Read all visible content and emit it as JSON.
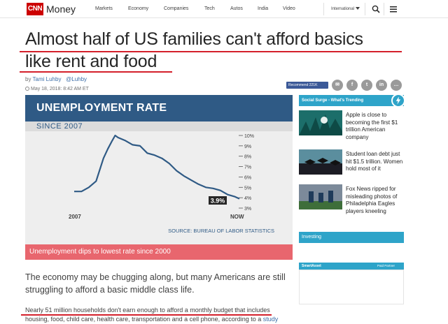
{
  "nav": {
    "logo": "CNN",
    "brand": "Money",
    "links": [
      "Markets",
      "Economy",
      "Companies",
      "Tech",
      "Autos",
      "India",
      "Video"
    ],
    "region": "International"
  },
  "article": {
    "headline_line1": "Almost half of US families can't afford basics",
    "headline_line2": "like rent and food",
    "by": "by",
    "author": "Tami Luhby",
    "handle": "@Luhby",
    "date": "May 18, 2018: 8:42 AM ET",
    "caption": "Unemployment dips to lowest rate since 2000",
    "para1": "The economy may be chugging along, but many Americans are still struggling to afford a basic middle class life.",
    "para2_line1": "Nearly 51 million households don't earn enough to afford a monthly budget that includes",
    "para2_line2": "housing, food, child care, health care, transportation and a cell phone, according to a",
    "para2_link": "study"
  },
  "social": {
    "recommend": "Recommend 221K",
    "icons": [
      "mail-icon",
      "facebook-icon",
      "twitter-icon",
      "linkedin-icon",
      "more-icon"
    ],
    "glyphs": [
      "✉",
      "f",
      "t",
      "in",
      "…"
    ]
  },
  "chart_image": {
    "title": "UNEMPLOYMENT RATE",
    "subtitle": "SINCE 2007",
    "source": "SOURCE: BUREAU OF LABOR STATISTICS",
    "current_label": "3.9%",
    "x_start": "2007",
    "x_end": "NOW",
    "y_ticks": [
      "10%",
      "9%",
      "8%",
      "7%",
      "6%",
      "5%",
      "4%",
      "3%"
    ],
    "colors": {
      "title_bar": "#2f5a85",
      "line": "#2f5a85",
      "caption": "#e8666e"
    }
  },
  "chart_data": {
    "type": "line",
    "title": "UNEMPLOYMENT RATE",
    "subtitle": "SINCE 2007",
    "x": [
      2007.0,
      2007.5,
      2008.0,
      2008.5,
      2009.0,
      2009.3,
      2009.6,
      2009.8,
      2010.0,
      2010.5,
      2011.0,
      2011.5,
      2012.0,
      2012.5,
      2013.0,
      2013.5,
      2014.0,
      2014.5,
      2015.0,
      2015.5,
      2016.0,
      2016.5,
      2017.0,
      2017.5,
      2018.0,
      2018.3
    ],
    "y": [
      4.6,
      4.6,
      5.0,
      5.6,
      7.8,
      8.7,
      9.5,
      10.0,
      9.8,
      9.5,
      9.1,
      9.0,
      8.3,
      8.1,
      7.8,
      7.3,
      6.6,
      6.1,
      5.7,
      5.3,
      5.0,
      4.9,
      4.7,
      4.3,
      4.1,
      3.9
    ],
    "x_tick_labels": [
      "2007",
      "NOW"
    ],
    "ylim": [
      3,
      10
    ],
    "y_ticks": [
      "10%",
      "9%",
      "8%",
      "7%",
      "6%",
      "5%",
      "4%",
      "3%"
    ],
    "annotation": "3.9%",
    "source": "SOURCE: BUREAU OF LABOR STATISTICS"
  },
  "sidebar": {
    "social_surge": "Social Surge - What's Trending",
    "stories": [
      {
        "text": "Apple is close to becoming the first $1 trillion American company"
      },
      {
        "text": "Student loan debt just hit $1.5 trillion. Women hold most of it"
      },
      {
        "text": "Fox News ripped for misleading photos of Philadelphia Eagles players kneeling"
      }
    ],
    "investing": "Investing",
    "smartasset": "SmartAsset",
    "paid_partner": "Paid Partner"
  }
}
